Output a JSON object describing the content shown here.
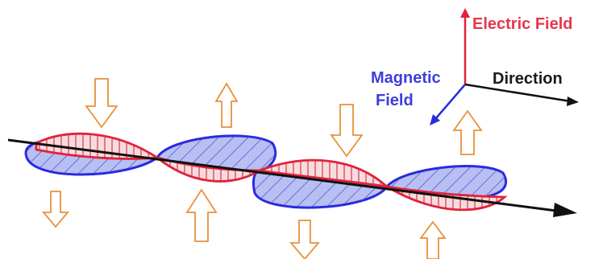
{
  "labels": {
    "electric_field": "Electric Field",
    "magnetic_line1": "Magnetic",
    "magnetic_line2": "Field",
    "direction": "Direction"
  },
  "colors": {
    "electric": "#e0223a",
    "electric_fill": "#f7dcdf",
    "magnetic": "#2a2ae0",
    "magnetic_fill": "#b8bff2",
    "propagation": "#111111",
    "force_arrow": "#e8913b",
    "electric_label": "#e5364c",
    "magnetic_label": "#3d3ddc",
    "direction_label": "#1a1a1a"
  },
  "icons": {
    "force_arrow": "hollow-block-arrow-icon"
  }
}
